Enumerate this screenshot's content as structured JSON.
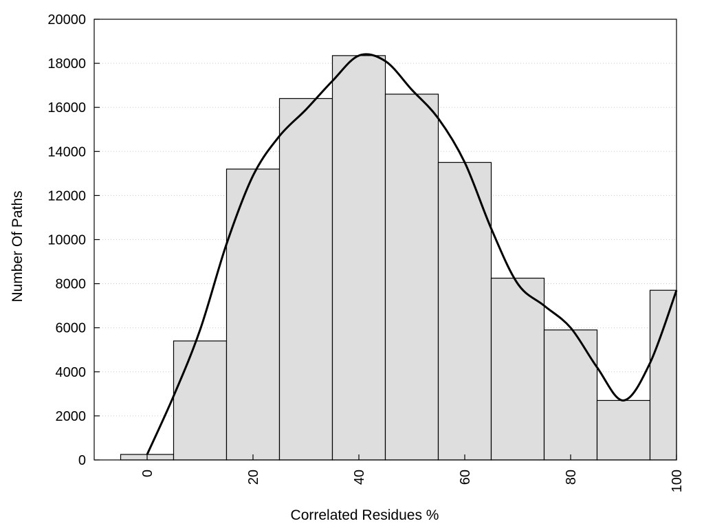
{
  "chart_data": {
    "type": "bar",
    "title": "",
    "xlabel": "Correlated Residues %",
    "ylabel": "Number Of Paths",
    "x": [
      0,
      10,
      20,
      30,
      40,
      50,
      60,
      70,
      80,
      90,
      100
    ],
    "bin_width": 10,
    "values": [
      250,
      5400,
      13200,
      16400,
      18350,
      16600,
      13500,
      8250,
      5900,
      2700,
      7700
    ],
    "xlim": [
      -10,
      100
    ],
    "ylim": [
      0,
      20000
    ],
    "x_ticks": [
      0,
      20,
      40,
      60,
      80,
      100
    ],
    "x_tick_labels": [
      "0",
      "20",
      "40",
      "60",
      "80",
      "100"
    ],
    "y_ticks": [
      0,
      2000,
      4000,
      6000,
      8000,
      10000,
      12000,
      14000,
      16000,
      18000,
      20000
    ],
    "y_tick_labels": [
      "0",
      "2000",
      "4000",
      "6000",
      "8000",
      "10000",
      "12000",
      "14000",
      "16000",
      "18000",
      "20000"
    ],
    "grid": "horizontal dotted",
    "bar_color": "#dedede",
    "line_color": "#000000",
    "overlay_line": {
      "type": "smooth density curve",
      "x": [
        0,
        5,
        10,
        15,
        20,
        25,
        30,
        35,
        40,
        45,
        50,
        55,
        60,
        65,
        70,
        75,
        80,
        85,
        90,
        95,
        100
      ],
      "y": [
        250,
        2900,
        5900,
        9800,
        12900,
        14700,
        15900,
        17200,
        18350,
        18100,
        16800,
        15500,
        13500,
        10500,
        8000,
        7000,
        6000,
        4200,
        2700,
        4400,
        7700
      ]
    }
  }
}
